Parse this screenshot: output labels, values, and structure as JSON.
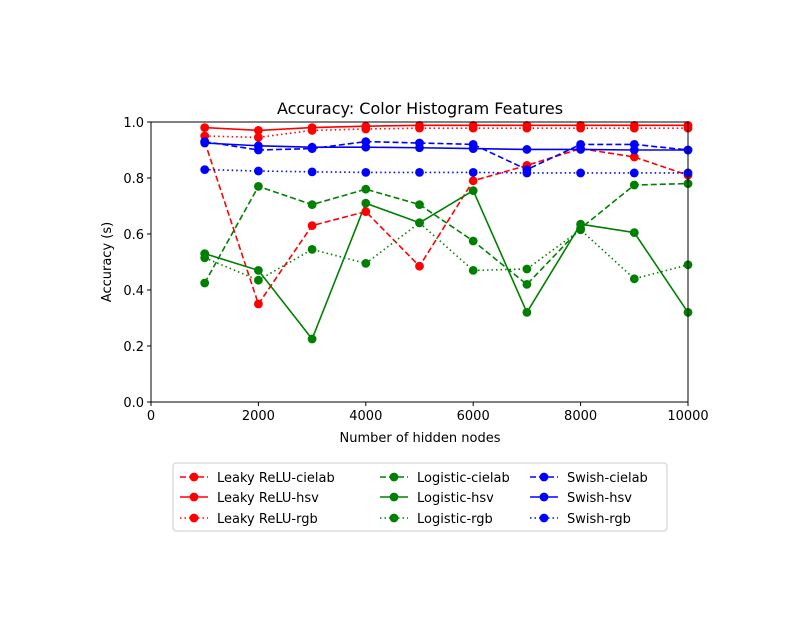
{
  "chart_data": {
    "type": "line",
    "title": "Accuracy: Color Histogram Features",
    "xlabel": "Number of hidden nodes",
    "ylabel": "Accuracy (s)",
    "xlim": [
      0,
      10000
    ],
    "ylim": [
      0,
      1.0
    ],
    "xticks": [
      0,
      2000,
      4000,
      6000,
      8000,
      10000
    ],
    "yticks": [
      0.0,
      0.2,
      0.4,
      0.6,
      0.8,
      1.0
    ],
    "xtick_labels": [
      "0",
      "2000",
      "4000",
      "6000",
      "8000",
      "10000"
    ],
    "ytick_labels": [
      "0.0",
      "0.2",
      "0.4",
      "0.6",
      "0.8",
      "1.0"
    ],
    "grid": false,
    "legend_position": "bottom-center",
    "x": [
      1000,
      2000,
      3000,
      4000,
      5000,
      6000,
      7000,
      8000,
      9000,
      10000
    ],
    "series": [
      {
        "name": "Leaky ReLU-cielab",
        "color": "#ff0000",
        "linestyle": "dashed",
        "marker": "circle",
        "values": [
          0.93,
          0.35,
          0.63,
          0.68,
          0.485,
          0.79,
          0.845,
          0.905,
          0.875,
          0.81
        ]
      },
      {
        "name": "Leaky ReLU-hsv",
        "color": "#ff0000",
        "linestyle": "solid",
        "marker": "circle",
        "values": [
          0.98,
          0.97,
          0.98,
          0.985,
          0.988,
          0.988,
          0.988,
          0.988,
          0.988,
          0.988
        ]
      },
      {
        "name": "Leaky ReLU-rgb",
        "color": "#ff0000",
        "linestyle": "dotted",
        "marker": "circle",
        "values": [
          0.95,
          0.945,
          0.97,
          0.975,
          0.978,
          0.978,
          0.978,
          0.978,
          0.978,
          0.978
        ]
      },
      {
        "name": "Logistic-cielab",
        "color": "#008000",
        "linestyle": "dashed",
        "marker": "circle",
        "values": [
          0.425,
          0.77,
          0.705,
          0.76,
          0.705,
          0.575,
          0.42,
          0.62,
          0.775,
          0.78
        ]
      },
      {
        "name": "Logistic-hsv",
        "color": "#008000",
        "linestyle": "solid",
        "marker": "circle",
        "values": [
          0.53,
          0.47,
          0.225,
          0.71,
          0.64,
          0.755,
          0.32,
          0.635,
          0.605,
          0.32
        ]
      },
      {
        "name": "Logistic-rgb",
        "color": "#008000",
        "linestyle": "dotted",
        "marker": "circle",
        "values": [
          0.515,
          0.435,
          0.545,
          0.495,
          0.64,
          0.47,
          0.475,
          0.615,
          0.44,
          0.49
        ]
      },
      {
        "name": "Swish-cielab",
        "color": "#0000ff",
        "linestyle": "dashed",
        "marker": "circle",
        "values": [
          0.93,
          0.9,
          0.905,
          0.93,
          0.925,
          0.92,
          0.83,
          0.92,
          0.92,
          0.9
        ]
      },
      {
        "name": "Swish-hsv",
        "color": "#0000ff",
        "linestyle": "solid",
        "marker": "circle",
        "values": [
          0.925,
          0.915,
          0.91,
          0.91,
          0.908,
          0.905,
          0.902,
          0.902,
          0.9,
          0.9
        ]
      },
      {
        "name": "Swish-rgb",
        "color": "#0000ff",
        "linestyle": "dotted",
        "marker": "circle",
        "values": [
          0.83,
          0.825,
          0.822,
          0.82,
          0.82,
          0.82,
          0.818,
          0.818,
          0.818,
          0.818
        ]
      }
    ]
  }
}
